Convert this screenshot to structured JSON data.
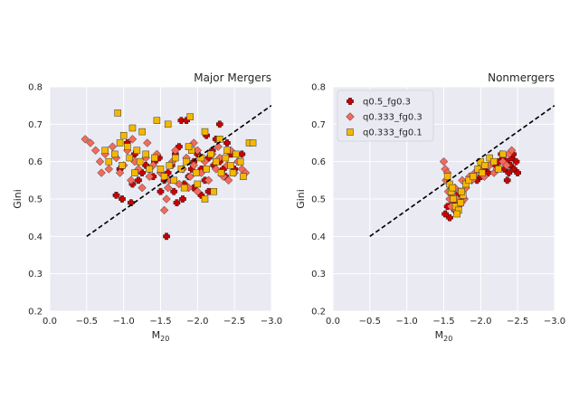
{
  "chart_data": [
    {
      "type": "scatter",
      "title": "Major Mergers",
      "xlabel": "M",
      "xlabel_sub": "20",
      "ylabel": "Gini",
      "xlim": [
        0.0,
        -3.0
      ],
      "ylim": [
        0.2,
        0.8
      ],
      "xticks": [
        "0.0",
        "−0.5",
        "−1.0",
        "−1.5",
        "−2.0",
        "−2.5",
        "−3.0"
      ],
      "yticks": [
        "0.2",
        "0.3",
        "0.4",
        "0.5",
        "0.6",
        "0.7",
        "0.8"
      ],
      "grid": true,
      "divider_line": {
        "x": [
          -0.5,
          -3.0
        ],
        "y": [
          0.4,
          0.75
        ],
        "style": "dashed",
        "color": "#000000"
      },
      "series": [
        {
          "name": "q0.5_fg0.3",
          "marker": "plus",
          "color": "#cc0000",
          "points": [
            [
              -1.58,
              0.4
            ],
            [
              -0.9,
              0.51
            ],
            [
              -0.98,
              0.5
            ],
            [
              -1.1,
              0.49
            ],
            [
              -1.12,
              0.54
            ],
            [
              -1.2,
              0.55
            ],
            [
              -1.25,
              0.57
            ],
            [
              -1.35,
              0.58
            ],
            [
              -1.42,
              0.6
            ],
            [
              -1.5,
              0.52
            ],
            [
              -1.55,
              0.55
            ],
            [
              -1.6,
              0.57
            ],
            [
              -1.65,
              0.59
            ],
            [
              -1.7,
              0.62
            ],
            [
              -1.75,
              0.64
            ],
            [
              -1.78,
              0.71
            ],
            [
              -1.85,
              0.71
            ],
            [
              -1.72,
              0.49
            ],
            [
              -1.8,
              0.5
            ],
            [
              -1.88,
              0.56
            ],
            [
              -1.92,
              0.58
            ],
            [
              -1.95,
              0.6
            ],
            [
              -2.0,
              0.62
            ],
            [
              -2.05,
              0.58
            ],
            [
              -2.1,
              0.55
            ],
            [
              -2.15,
              0.61
            ],
            [
              -2.2,
              0.63
            ],
            [
              -2.25,
              0.66
            ],
            [
              -2.3,
              0.6
            ],
            [
              -2.35,
              0.58
            ],
            [
              -2.4,
              0.65
            ],
            [
              -2.45,
              0.62
            ],
            [
              -2.5,
              0.58
            ],
            [
              -2.55,
              0.6
            ],
            [
              -2.6,
              0.62
            ],
            [
              -2.3,
              0.7
            ],
            [
              -2.15,
              0.52
            ],
            [
              -2.05,
              0.51
            ],
            [
              -1.95,
              0.53
            ],
            [
              -1.82,
              0.54
            ],
            [
              -1.4,
              0.56
            ],
            [
              -1.3,
              0.59
            ],
            [
              -1.15,
              0.62
            ],
            [
              -1.05,
              0.65
            ],
            [
              -0.95,
              0.58
            ],
            [
              -2.38,
              0.56
            ],
            [
              -2.22,
              0.59
            ],
            [
              -2.12,
              0.67
            ],
            [
              -1.68,
              0.52
            ],
            [
              -1.48,
              0.61
            ]
          ]
        },
        {
          "name": "q0.333_fg0.3",
          "marker": "diamond",
          "color": "#f26b5b",
          "points": [
            [
              -0.48,
              0.66
            ],
            [
              -0.55,
              0.65
            ],
            [
              -0.62,
              0.63
            ],
            [
              -0.68,
              0.6
            ],
            [
              -0.75,
              0.62
            ],
            [
              -0.8,
              0.58
            ],
            [
              -0.85,
              0.64
            ],
            [
              -0.9,
              0.61
            ],
            [
              -0.95,
              0.57
            ],
            [
              -1.0,
              0.59
            ],
            [
              -1.05,
              0.63
            ],
            [
              -1.1,
              0.55
            ],
            [
              -1.15,
              0.6
            ],
            [
              -1.2,
              0.58
            ],
            [
              -1.25,
              0.53
            ],
            [
              -1.3,
              0.61
            ],
            [
              -1.35,
              0.56
            ],
            [
              -1.4,
              0.59
            ],
            [
              -1.45,
              0.62
            ],
            [
              -1.5,
              0.57
            ],
            [
              -1.55,
              0.47
            ],
            [
              -1.58,
              0.5
            ],
            [
              -1.62,
              0.55
            ],
            [
              -1.66,
              0.6
            ],
            [
              -1.7,
              0.63
            ],
            [
              -1.75,
              0.54
            ],
            [
              -1.8,
              0.58
            ],
            [
              -1.85,
              0.61
            ],
            [
              -1.9,
              0.56
            ],
            [
              -1.95,
              0.59
            ],
            [
              -2.0,
              0.63
            ],
            [
              -2.05,
              0.57
            ],
            [
              -2.1,
              0.6
            ],
            [
              -2.15,
              0.55
            ],
            [
              -2.2,
              0.62
            ],
            [
              -2.25,
              0.58
            ],
            [
              -2.3,
              0.61
            ],
            [
              -2.35,
              0.56
            ],
            [
              -2.4,
              0.59
            ],
            [
              -2.45,
              0.63
            ],
            [
              -2.5,
              0.57
            ],
            [
              -2.55,
              0.6
            ],
            [
              -2.6,
              0.58
            ],
            [
              -2.65,
              0.57
            ],
            [
              -1.32,
              0.65
            ],
            [
              -1.12,
              0.66
            ],
            [
              -2.0,
              0.52
            ],
            [
              -1.88,
              0.53
            ],
            [
              -1.6,
              0.53
            ],
            [
              -0.7,
              0.57
            ],
            [
              -1.95,
              0.65
            ],
            [
              -2.28,
              0.64
            ],
            [
              -2.42,
              0.55
            ]
          ]
        },
        {
          "name": "q0.333_fg0.1",
          "marker": "square",
          "color": "#f5b800",
          "points": [
            [
              -0.92,
              0.73
            ],
            [
              -1.12,
              0.69
            ],
            [
              -1.45,
              0.71
            ],
            [
              -1.6,
              0.7
            ],
            [
              -1.9,
              0.72
            ],
            [
              -2.1,
              0.68
            ],
            [
              -1.25,
              0.68
            ],
            [
              -1.0,
              0.67
            ],
            [
              -0.95,
              0.65
            ],
            [
              -1.05,
              0.64
            ],
            [
              -1.18,
              0.63
            ],
            [
              -1.3,
              0.62
            ],
            [
              -0.8,
              0.6
            ],
            [
              -0.88,
              0.62
            ],
            [
              -0.98,
              0.59
            ],
            [
              -1.08,
              0.61
            ],
            [
              -1.15,
              0.57
            ],
            [
              -1.22,
              0.6
            ],
            [
              -1.35,
              0.58
            ],
            [
              -1.42,
              0.61
            ],
            [
              -1.55,
              0.56
            ],
            [
              -1.62,
              0.59
            ],
            [
              -1.7,
              0.61
            ],
            [
              -1.78,
              0.58
            ],
            [
              -1.85,
              0.6
            ],
            [
              -1.92,
              0.63
            ],
            [
              -1.98,
              0.57
            ],
            [
              -2.05,
              0.61
            ],
            [
              -2.12,
              0.58
            ],
            [
              -2.18,
              0.62
            ],
            [
              -2.25,
              0.6
            ],
            [
              -2.32,
              0.57
            ],
            [
              -2.38,
              0.61
            ],
            [
              -2.45,
              0.59
            ],
            [
              -2.52,
              0.62
            ],
            [
              -2.58,
              0.6
            ],
            [
              -2.62,
              0.56
            ],
            [
              -2.7,
              0.65
            ],
            [
              -2.75,
              0.65
            ],
            [
              -2.22,
              0.52
            ],
            [
              -2.1,
              0.5
            ],
            [
              -2.0,
              0.54
            ],
            [
              -1.68,
              0.55
            ],
            [
              -1.82,
              0.53
            ],
            [
              -1.5,
              0.58
            ],
            [
              -0.75,
              0.63
            ],
            [
              -2.48,
              0.57
            ],
            [
              -2.4,
              0.63
            ],
            [
              -1.88,
              0.64
            ],
            [
              -2.3,
              0.66
            ]
          ]
        }
      ]
    },
    {
      "type": "scatter",
      "title": "Nonmergers",
      "xlabel": "M",
      "xlabel_sub": "20",
      "ylabel": "Gini",
      "xlim": [
        0.0,
        -3.0
      ],
      "ylim": [
        0.2,
        0.8
      ],
      "xticks": [
        "0.0",
        "−0.5",
        "−1.0",
        "−1.5",
        "−2.0",
        "−2.5",
        "−3.0"
      ],
      "yticks": [
        "0.2",
        "0.3",
        "0.4",
        "0.5",
        "0.6",
        "0.7",
        "0.8"
      ],
      "grid": true,
      "legend": "top-left",
      "divider_line": {
        "x": [
          -0.5,
          -3.0
        ],
        "y": [
          0.4,
          0.75
        ],
        "style": "dashed",
        "color": "#000000"
      },
      "series": [
        {
          "name": "q0.5_fg0.3",
          "marker": "plus",
          "color": "#cc0000",
          "points": [
            [
              -1.52,
              0.46
            ],
            [
              -1.55,
              0.48
            ],
            [
              -1.58,
              0.45
            ],
            [
              -1.62,
              0.49
            ],
            [
              -1.65,
              0.47
            ],
            [
              -1.68,
              0.51
            ],
            [
              -1.72,
              0.49
            ],
            [
              -1.95,
              0.55
            ],
            [
              -2.0,
              0.56
            ],
            [
              -2.05,
              0.58
            ],
            [
              -2.1,
              0.57
            ],
            [
              -2.2,
              0.59
            ],
            [
              -2.25,
              0.6
            ],
            [
              -2.3,
              0.61
            ],
            [
              -2.32,
              0.58
            ],
            [
              -2.35,
              0.6
            ],
            [
              -2.38,
              0.57
            ],
            [
              -2.4,
              0.59
            ],
            [
              -2.42,
              0.61
            ],
            [
              -2.45,
              0.58
            ],
            [
              -2.48,
              0.6
            ],
            [
              -2.5,
              0.57
            ],
            [
              -2.36,
              0.55
            ],
            [
              -2.28,
              0.62
            ],
            [
              -2.44,
              0.62
            ]
          ]
        },
        {
          "name": "q0.333_fg0.3",
          "marker": "diamond",
          "color": "#f26b5b",
          "points": [
            [
              -1.5,
              0.6
            ],
            [
              -1.52,
              0.58
            ],
            [
              -1.55,
              0.57
            ],
            [
              -1.53,
              0.55
            ],
            [
              -1.56,
              0.52
            ],
            [
              -1.58,
              0.5
            ],
            [
              -1.6,
              0.48
            ],
            [
              -1.62,
              0.51
            ],
            [
              -1.65,
              0.53
            ],
            [
              -1.68,
              0.5
            ],
            [
              -1.7,
              0.48
            ],
            [
              -1.72,
              0.52
            ],
            [
              -1.75,
              0.55
            ],
            [
              -1.78,
              0.5
            ],
            [
              -1.8,
              0.53
            ],
            [
              -1.85,
              0.56
            ],
            [
              -1.88,
              0.55
            ],
            [
              -1.92,
              0.57
            ],
            [
              -1.98,
              0.58
            ],
            [
              -2.05,
              0.56
            ],
            [
              -2.12,
              0.59
            ],
            [
              -2.18,
              0.57
            ],
            [
              -2.22,
              0.58
            ],
            [
              -2.3,
              0.6
            ],
            [
              -2.38,
              0.62
            ],
            [
              -2.42,
              0.63
            ],
            [
              -2.35,
              0.59
            ],
            [
              -1.66,
              0.47
            ],
            [
              -1.74,
              0.49
            ]
          ]
        },
        {
          "name": "q0.333_fg0.1",
          "marker": "square",
          "color": "#f5b800",
          "points": [
            [
              -1.55,
              0.56
            ],
            [
              -1.58,
              0.54
            ],
            [
              -1.6,
              0.52
            ],
            [
              -1.63,
              0.5
            ],
            [
              -1.66,
              0.48
            ],
            [
              -1.7,
              0.47
            ],
            [
              -1.73,
              0.49
            ],
            [
              -1.76,
              0.51
            ],
            [
              -1.8,
              0.54
            ],
            [
              -1.84,
              0.55
            ],
            [
              -1.9,
              0.56
            ],
            [
              -1.96,
              0.58
            ],
            [
              -2.0,
              0.6
            ],
            [
              -2.06,
              0.59
            ],
            [
              -2.12,
              0.61
            ],
            [
              -2.18,
              0.6
            ],
            [
              -2.24,
              0.58
            ],
            [
              -2.3,
              0.62
            ],
            [
              -1.68,
              0.46
            ],
            [
              -1.62,
              0.53
            ],
            [
              -1.74,
              0.52
            ],
            [
              -2.02,
              0.57
            ]
          ]
        }
      ]
    }
  ]
}
